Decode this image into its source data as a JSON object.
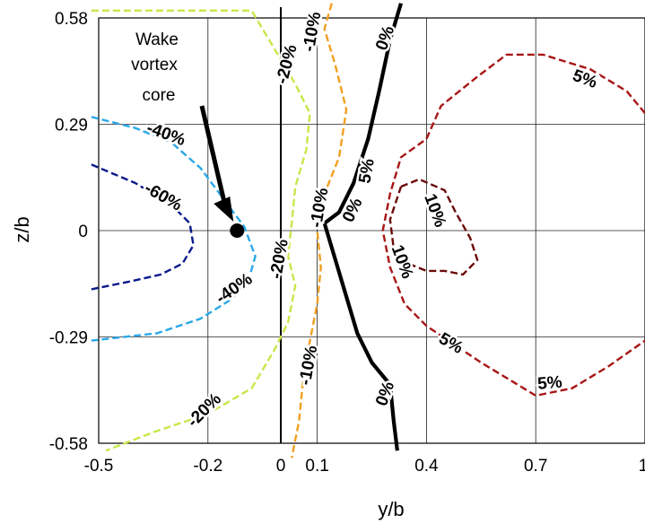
{
  "chart_data": {
    "type": "contour",
    "xlabel": "y/b",
    "ylabel": "z/b",
    "xlim": [
      -0.5,
      1.0
    ],
    "ylim": [
      -0.58,
      0.58
    ],
    "x_ticks": [
      "-0.5",
      "-0.2",
      "0",
      "0.1",
      "0.4",
      "0.7",
      "1"
    ],
    "x_tick_values": [
      -0.5,
      -0.2,
      0,
      0.1,
      0.4,
      0.7,
      1.0
    ],
    "y_ticks": [
      "0.58",
      "0.29",
      "0",
      "-0.29",
      "-0.58"
    ],
    "y_tick_values": [
      0.58,
      0.29,
      0,
      -0.29,
      -0.58
    ],
    "grid": true,
    "vertical_line_x": 0,
    "contours": [
      {
        "level": "-60%",
        "color": "#0b1a8c",
        "dashed": true,
        "points": [
          [
            -0.52,
            0.18
          ],
          [
            -0.4,
            0.13
          ],
          [
            -0.3,
            0.07
          ],
          [
            -0.25,
            0.02
          ],
          [
            -0.24,
            -0.04
          ],
          [
            -0.27,
            -0.09
          ],
          [
            -0.33,
            -0.12
          ],
          [
            -0.42,
            -0.14
          ],
          [
            -0.52,
            -0.16
          ]
        ]
      },
      {
        "level": "-40%",
        "color": "#2aa8e8",
        "dashed": true,
        "points": [
          [
            -0.52,
            0.31
          ],
          [
            -0.4,
            0.28
          ],
          [
            -0.3,
            0.24
          ],
          [
            -0.22,
            0.17
          ],
          [
            -0.16,
            0.09
          ],
          [
            -0.1,
            0.01
          ],
          [
            -0.07,
            -0.07
          ],
          [
            -0.09,
            -0.14
          ],
          [
            -0.14,
            -0.19
          ],
          [
            -0.22,
            -0.24
          ],
          [
            -0.34,
            -0.28
          ],
          [
            -0.52,
            -0.3
          ]
        ]
      },
      {
        "level": "-20%",
        "color": "#c6e84a",
        "dashed": true,
        "points": [
          [
            -0.52,
            0.6
          ],
          [
            -0.08,
            0.6
          ],
          [
            -0.02,
            0.5
          ],
          [
            0.04,
            0.4
          ],
          [
            0.08,
            0.32
          ],
          [
            0.07,
            0.22
          ],
          [
            0.04,
            0.12
          ],
          [
            0.03,
            0.02
          ],
          [
            0.02,
            -0.07
          ],
          [
            0.04,
            -0.15
          ],
          [
            0.02,
            -0.25
          ],
          [
            -0.02,
            -0.33
          ],
          [
            -0.08,
            -0.43
          ],
          [
            -0.2,
            -0.5
          ],
          [
            -0.35,
            -0.55
          ],
          [
            -0.48,
            -0.6
          ]
        ]
      },
      {
        "level": "-10%",
        "color": "#f0a020",
        "dashed": true,
        "points": [
          [
            0.14,
            0.62
          ],
          [
            0.12,
            0.55
          ],
          [
            0.15,
            0.45
          ],
          [
            0.18,
            0.33
          ],
          [
            0.16,
            0.2
          ],
          [
            0.12,
            0.1
          ],
          [
            0.1,
            0.0
          ],
          [
            0.11,
            -0.1
          ],
          [
            0.1,
            -0.2
          ],
          [
            0.08,
            -0.3
          ],
          [
            0.06,
            -0.42
          ],
          [
            0.05,
            -0.52
          ],
          [
            0.03,
            -0.62
          ]
        ]
      },
      {
        "level": "0%",
        "color": "#000000",
        "dashed": false,
        "points": [
          [
            0.33,
            0.62
          ],
          [
            0.3,
            0.52
          ],
          [
            0.27,
            0.38
          ],
          [
            0.24,
            0.25
          ],
          [
            0.2,
            0.13
          ],
          [
            0.16,
            0.05
          ],
          [
            0.12,
            0.02
          ],
          [
            0.15,
            -0.08
          ],
          [
            0.18,
            -0.18
          ],
          [
            0.21,
            -0.28
          ],
          [
            0.25,
            -0.36
          ],
          [
            0.3,
            -0.42
          ],
          [
            0.31,
            -0.52
          ],
          [
            0.32,
            -0.6
          ]
        ]
      },
      {
        "level": "5%",
        "color": "#a81616",
        "dashed": true,
        "points": [
          [
            1.0,
            0.32
          ],
          [
            0.95,
            0.38
          ],
          [
            0.85,
            0.44
          ],
          [
            0.72,
            0.48
          ],
          [
            0.62,
            0.48
          ],
          [
            0.54,
            0.42
          ],
          [
            0.44,
            0.34
          ],
          [
            0.4,
            0.25
          ],
          [
            0.33,
            0.2
          ],
          [
            0.3,
            0.1
          ],
          [
            0.28,
            0.0
          ],
          [
            0.3,
            -0.1
          ],
          [
            0.34,
            -0.2
          ],
          [
            0.4,
            -0.26
          ],
          [
            0.46,
            -0.3
          ],
          [
            0.55,
            -0.36
          ],
          [
            0.65,
            -0.42
          ],
          [
            0.7,
            -0.45
          ],
          [
            0.8,
            -0.43
          ],
          [
            0.9,
            -0.37
          ],
          [
            1.0,
            -0.3
          ]
        ]
      },
      {
        "level": "10%",
        "color": "#6b0a0a",
        "dashed": true,
        "points": [
          [
            0.33,
            0.12
          ],
          [
            0.38,
            0.14
          ],
          [
            0.45,
            0.11
          ],
          [
            0.48,
            0.05
          ],
          [
            0.52,
            -0.02
          ],
          [
            0.54,
            -0.08
          ],
          [
            0.5,
            -0.12
          ],
          [
            0.45,
            -0.11
          ],
          [
            0.4,
            -0.11
          ],
          [
            0.35,
            -0.09
          ],
          [
            0.31,
            -0.05
          ],
          [
            0.3,
            0.03
          ],
          [
            0.33,
            0.12
          ]
        ]
      }
    ],
    "annotations": [
      {
        "text": "Wake vortex core",
        "lines": [
          "Wake",
          "vortex",
          "core"
        ]
      }
    ],
    "vortex_core": {
      "x": -0.12,
      "y": 0.0
    }
  }
}
